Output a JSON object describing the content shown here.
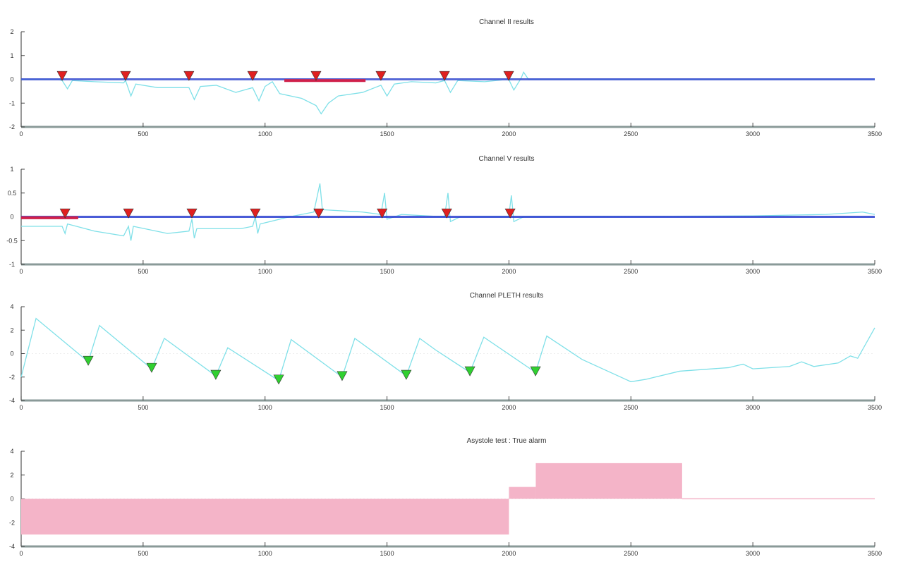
{
  "chart_data": [
    {
      "type": "line",
      "title": "Channel II results",
      "xlim": [
        0,
        3500
      ],
      "ylim": [
        -2,
        2
      ],
      "xticks": [
        0,
        500,
        1000,
        1500,
        2000,
        2500,
        3000,
        3500
      ],
      "yticks": [
        -2,
        -1,
        0,
        1,
        2
      ],
      "series": [
        {
          "name": "signal",
          "color": "#7fe0e8",
          "points": [
            [
              0,
              0
            ],
            [
              150,
              0
            ],
            [
              168,
              -0.05
            ],
            [
              190,
              -0.4
            ],
            [
              210,
              -0.05
            ],
            [
              300,
              -0.1
            ],
            [
              420,
              -0.15
            ],
            [
              428,
              -0.05
            ],
            [
              450,
              -0.7
            ],
            [
              470,
              -0.2
            ],
            [
              560,
              -0.35
            ],
            [
              688,
              -0.35
            ],
            [
              710,
              -0.85
            ],
            [
              735,
              -0.3
            ],
            [
              800,
              -0.25
            ],
            [
              880,
              -0.55
            ],
            [
              949,
              -0.35
            ],
            [
              975,
              -0.9
            ],
            [
              1000,
              -0.3
            ],
            [
              1030,
              -0.1
            ],
            [
              1060,
              -0.6
            ],
            [
              1150,
              -0.8
            ],
            [
              1209,
              -1.1
            ],
            [
              1230,
              -1.45
            ],
            [
              1260,
              -1.0
            ],
            [
              1300,
              -0.7
            ],
            [
              1400,
              -0.55
            ],
            [
              1475,
              -0.25
            ],
            [
              1500,
              -0.7
            ],
            [
              1530,
              -0.2
            ],
            [
              1600,
              -0.1
            ],
            [
              1700,
              -0.15
            ],
            [
              1736,
              -0.05
            ],
            [
              1760,
              -0.55
            ],
            [
              1790,
              -0.05
            ],
            [
              1900,
              -0.1
            ],
            [
              1999,
              0
            ],
            [
              2020,
              -0.45
            ],
            [
              2050,
              0.05
            ],
            [
              2060,
              0.3
            ],
            [
              2080,
              0
            ],
            [
              3500,
              0
            ]
          ]
        },
        {
          "name": "baseline",
          "color": "#3a4fd0",
          "points": [
            [
              0,
              0
            ],
            [
              3500,
              0
            ]
          ]
        }
      ],
      "segments": [
        {
          "name": "detected-interval",
          "color": "#d0204a",
          "x": [
            1079,
            1412
          ],
          "y": -0.05
        }
      ],
      "markers": {
        "color": "#e02020",
        "shape": "triangle-down",
        "x": [
          168,
          428,
          688,
          949,
          1209,
          1475,
          1736,
          1999
        ],
        "y": 0.1
      }
    },
    {
      "type": "line",
      "title": "Channel V results",
      "xlim": [
        0,
        3500
      ],
      "ylim": [
        -1,
        1
      ],
      "xticks": [
        0,
        500,
        1000,
        1500,
        2000,
        2500,
        3000,
        3500
      ],
      "yticks": [
        -1,
        -0.5,
        0,
        0.5,
        1
      ],
      "series": [
        {
          "name": "signal",
          "color": "#7fe0e8",
          "points": [
            [
              0,
              -0.2
            ],
            [
              168,
              -0.2
            ],
            [
              180,
              -0.35
            ],
            [
              190,
              -0.15
            ],
            [
              300,
              -0.3
            ],
            [
              420,
              -0.4
            ],
            [
              440,
              -0.2
            ],
            [
              450,
              -0.5
            ],
            [
              460,
              -0.2
            ],
            [
              600,
              -0.35
            ],
            [
              688,
              -0.3
            ],
            [
              700,
              -0.05
            ],
            [
              710,
              -0.45
            ],
            [
              720,
              -0.25
            ],
            [
              900,
              -0.25
            ],
            [
              949,
              -0.2
            ],
            [
              960,
              0
            ],
            [
              970,
              -0.35
            ],
            [
              980,
              -0.15
            ],
            [
              1100,
              0
            ],
            [
              1200,
              0.1
            ],
            [
              1225,
              0.7
            ],
            [
              1235,
              0.15
            ],
            [
              1400,
              0.1
            ],
            [
              1475,
              0.05
            ],
            [
              1490,
              0.5
            ],
            [
              1500,
              -0.05
            ],
            [
              1560,
              0.05
            ],
            [
              1736,
              0
            ],
            [
              1750,
              0.5
            ],
            [
              1760,
              -0.1
            ],
            [
              1800,
              0
            ],
            [
              1999,
              0
            ],
            [
              2010,
              0.45
            ],
            [
              2020,
              -0.1
            ],
            [
              2060,
              0
            ],
            [
              3000,
              0.02
            ],
            [
              3300,
              0.05
            ],
            [
              3450,
              0.1
            ],
            [
              3500,
              0.05
            ]
          ]
        },
        {
          "name": "baseline",
          "color": "#2a3fd0",
          "points": [
            [
              0,
              0
            ],
            [
              3500,
              0
            ]
          ]
        }
      ],
      "segments": [
        {
          "name": "detected-interval",
          "color": "#d0204a",
          "x": [
            0,
            234
          ],
          "y": -0.02
        }
      ],
      "markers": {
        "color": "#e02020",
        "shape": "triangle-down",
        "x": [
          180,
          440,
          700,
          960,
          1220,
          1480,
          1745,
          2005
        ],
        "y": 0.05
      }
    },
    {
      "type": "line",
      "title": "Channel PLETH results",
      "xlim": [
        0,
        3500
      ],
      "ylim": [
        -4,
        4
      ],
      "xticks": [
        0,
        500,
        1000,
        1500,
        2000,
        2500,
        3000,
        3500
      ],
      "yticks": [
        -4,
        -2,
        0,
        2,
        4
      ],
      "series": [
        {
          "name": "signal",
          "color": "#7fe0e8",
          "points": [
            [
              0,
              -2
            ],
            [
              61,
              3.0
            ],
            [
              275,
              -0.7
            ],
            [
              321,
              2.4
            ],
            [
              535,
              -1.3
            ],
            [
              587,
              1.3
            ],
            [
              798,
              -1.9
            ],
            [
              847,
              0.5
            ],
            [
              1056,
              -2.3
            ],
            [
              1107,
              1.2
            ],
            [
              1316,
              -2.0
            ],
            [
              1368,
              1.3
            ],
            [
              1579,
              -1.9
            ],
            [
              1634,
              1.3
            ],
            [
              1700,
              0.3
            ],
            [
              1840,
              -1.6
            ],
            [
              1897,
              1.4
            ],
            [
              2109,
              -1.6
            ],
            [
              2155,
              1.5
            ],
            [
              2300,
              -0.5
            ],
            [
              2500,
              -2.4
            ],
            [
              2560,
              -2.2
            ],
            [
              2700,
              -1.5
            ],
            [
              2900,
              -1.2
            ],
            [
              2960,
              -0.9
            ],
            [
              3000,
              -1.3
            ],
            [
              3150,
              -1.1
            ],
            [
              3200,
              -0.7
            ],
            [
              3250,
              -1.1
            ],
            [
              3350,
              -0.8
            ],
            [
              3400,
              -0.2
            ],
            [
              3430,
              -0.4
            ],
            [
              3500,
              2.2
            ]
          ]
        }
      ],
      "markers": {
        "color": "#30d030",
        "shape": "triangle-down",
        "x": [
          275,
          535,
          798,
          1056,
          1316,
          1579,
          1840,
          2109
        ],
        "y": [
          -0.7,
          -1.3,
          -1.9,
          -2.3,
          -2.0,
          -1.9,
          -1.6,
          -1.6
        ]
      }
    },
    {
      "type": "bar",
      "title": "Asystole test :  True alarm",
      "xlim": [
        0,
        3500
      ],
      "ylim": [
        -4,
        4
      ],
      "xticks": [
        0,
        500,
        1000,
        1500,
        2000,
        2500,
        3000,
        3500
      ],
      "yticks": [
        -4,
        -2,
        0,
        2,
        4
      ],
      "color": "#f4b4c8",
      "bars": [
        {
          "x0": 0,
          "x1": 2000,
          "value": -3
        },
        {
          "x0": 2000,
          "x1": 2110,
          "value": 1
        },
        {
          "x0": 2110,
          "x1": 2710,
          "value": 3
        },
        {
          "x0": 2710,
          "x1": 3500,
          "value": 0.05
        }
      ]
    }
  ]
}
